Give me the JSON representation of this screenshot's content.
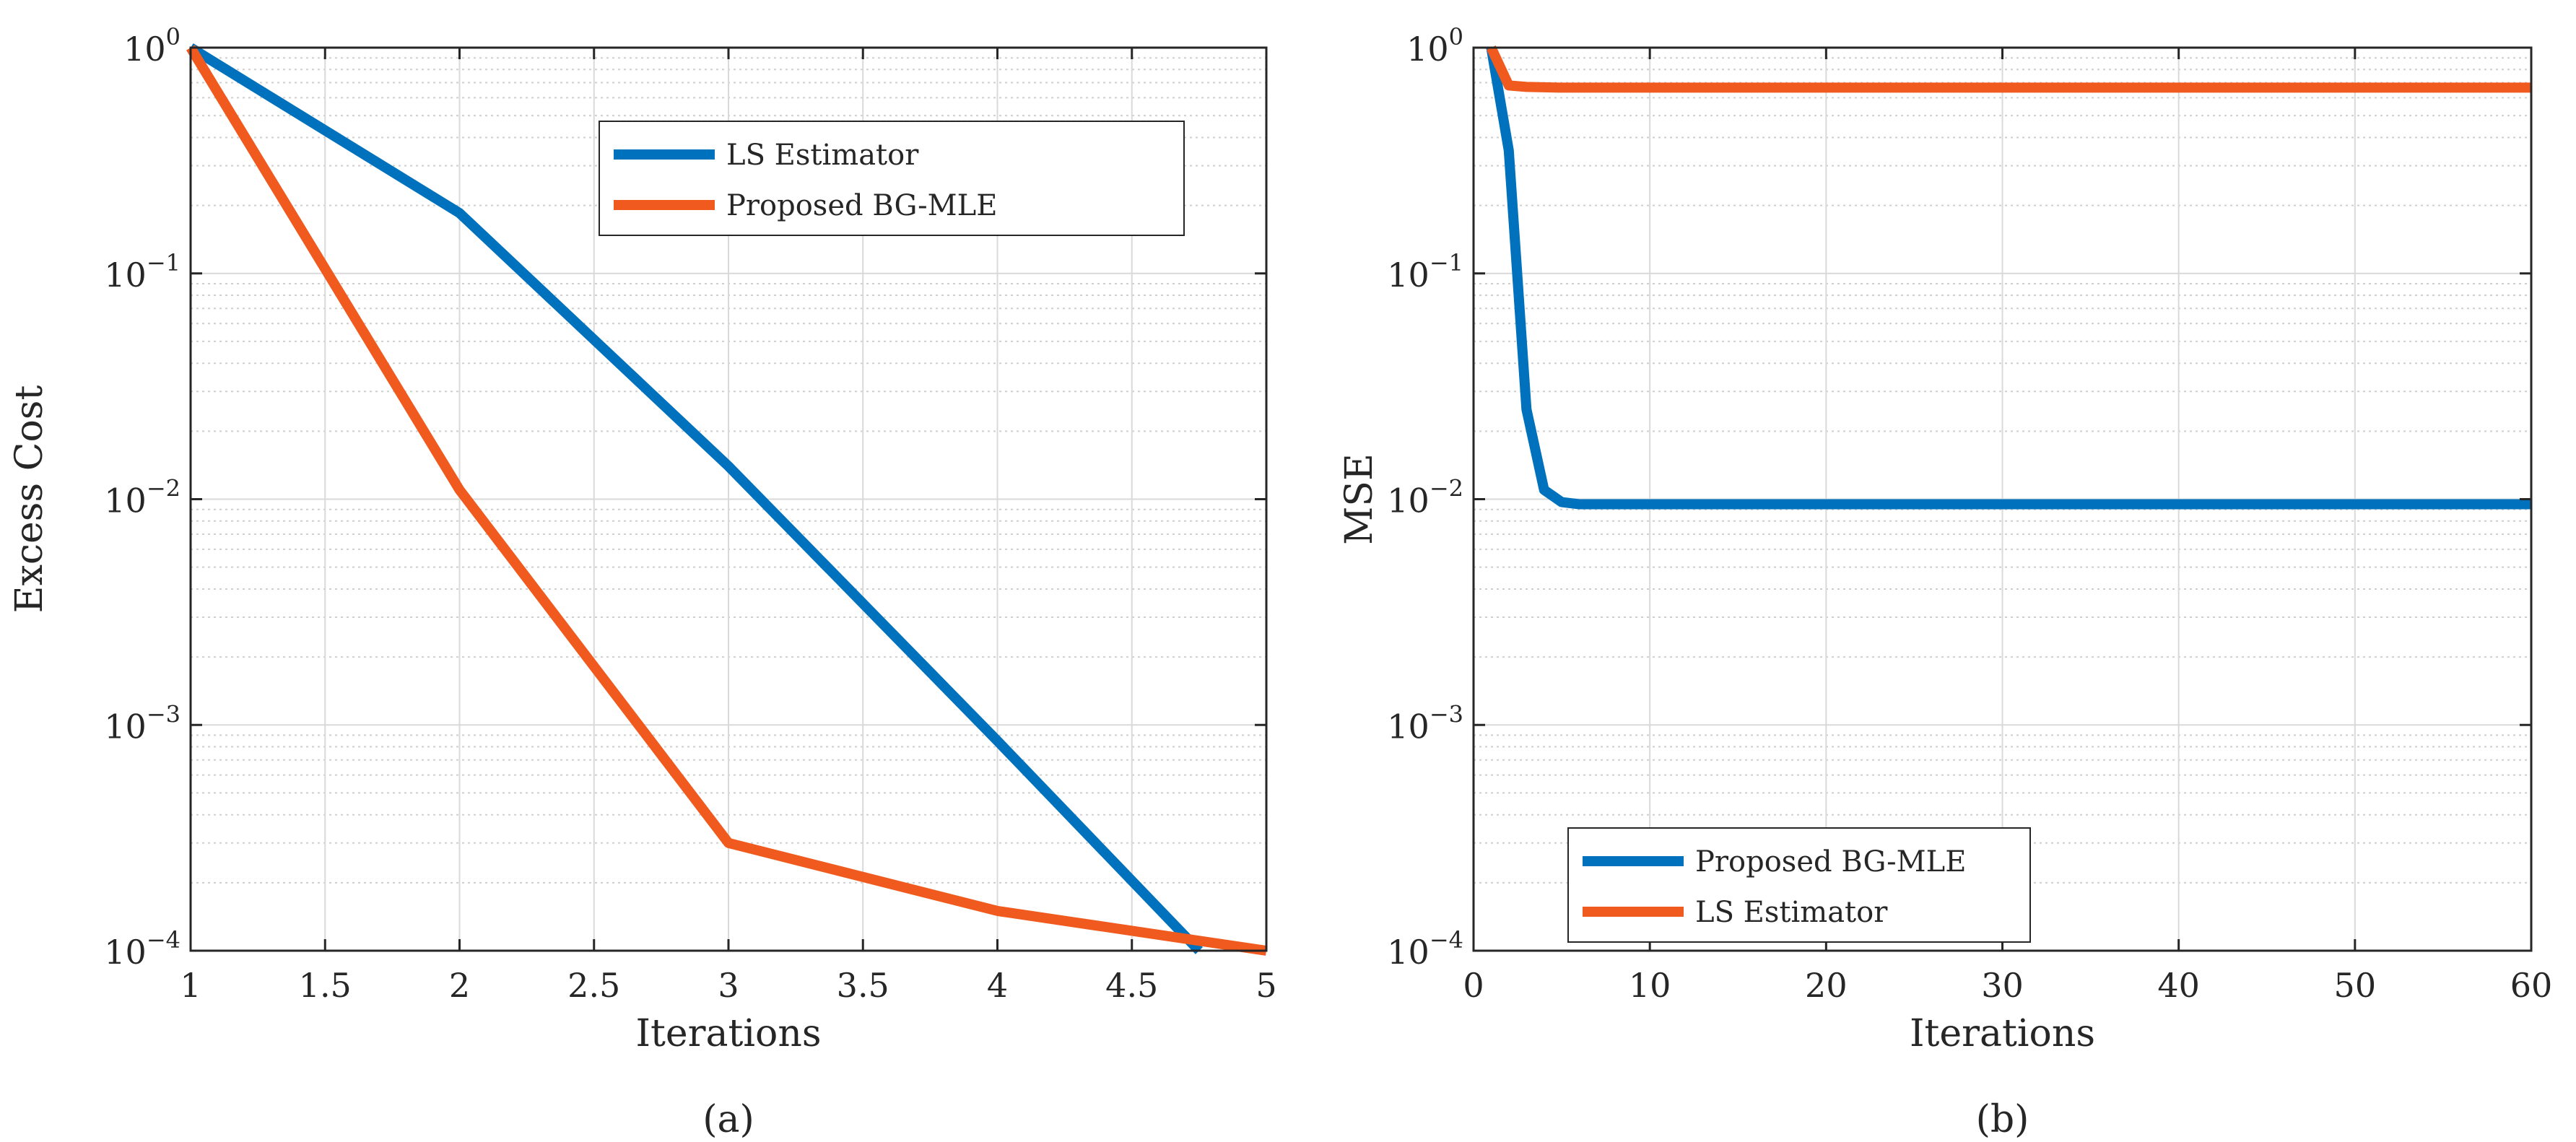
{
  "colors": {
    "blue": "#0072BD",
    "orange": "#F05A1E",
    "grid": "#d9d9d9",
    "axis": "#262626"
  },
  "chart_data": [
    {
      "type": "line",
      "panel": "(a)",
      "xlabel": "Iterations",
      "ylabel": "Excess Cost",
      "xscale": "linear",
      "yscale": "log",
      "xlim": [
        1,
        5
      ],
      "ylim": [
        0.0001,
        1
      ],
      "xticks": [
        1,
        1.5,
        2,
        2.5,
        3,
        3.5,
        4,
        4.5,
        5
      ],
      "xtick_labels": [
        "1",
        "1.5",
        "2",
        "2.5",
        "3",
        "3.5",
        "4",
        "4.5",
        "5"
      ],
      "yticks": [
        {
          "value": 1,
          "base": "10",
          "exp": "0"
        },
        {
          "value": 0.1,
          "base": "10",
          "exp": "−1"
        },
        {
          "value": 0.01,
          "base": "10",
          "exp": "−2"
        },
        {
          "value": 0.001,
          "base": "10",
          "exp": "−3"
        },
        {
          "value": 0.0001,
          "base": "10",
          "exp": "−4"
        }
      ],
      "grid": true,
      "legend_position": "top-right",
      "series": [
        {
          "name": "LS Estimator",
          "color": "#0072BD",
          "x": [
            1,
            2,
            3,
            4,
            4.75
          ],
          "y": [
            1,
            0.185,
            0.014,
            0.00085,
            0.0001
          ]
        },
        {
          "name": "Proposed BG-MLE",
          "color": "#F05A1E",
          "x": [
            1,
            2,
            3,
            4,
            5
          ],
          "y": [
            1,
            0.011,
            0.0003,
            0.00015,
            0.0001
          ]
        }
      ]
    },
    {
      "type": "line",
      "panel": "(b)",
      "xlabel": "Iterations",
      "ylabel": "MSE",
      "xscale": "linear",
      "yscale": "log",
      "xlim": [
        0,
        60
      ],
      "ylim": [
        0.0001,
        1
      ],
      "xticks": [
        0,
        10,
        20,
        30,
        40,
        50,
        60
      ],
      "xtick_labels": [
        "0",
        "10",
        "20",
        "30",
        "40",
        "50",
        "60"
      ],
      "yticks": [
        {
          "value": 1,
          "base": "10",
          "exp": "0"
        },
        {
          "value": 0.1,
          "base": "10",
          "exp": "−1"
        },
        {
          "value": 0.01,
          "base": "10",
          "exp": "−2"
        },
        {
          "value": 0.001,
          "base": "10",
          "exp": "−3"
        },
        {
          "value": 0.0001,
          "base": "10",
          "exp": "−4"
        }
      ],
      "grid": true,
      "legend_position": "bottom-left",
      "series": [
        {
          "name": "Proposed BG-MLE",
          "color": "#0072BD",
          "x": [
            1,
            2,
            3,
            4,
            5,
            6,
            8,
            10,
            20,
            30,
            40,
            50,
            60
          ],
          "y": [
            1,
            0.35,
            0.025,
            0.011,
            0.0097,
            0.0095,
            0.0095,
            0.0095,
            0.0095,
            0.0095,
            0.0095,
            0.0095,
            0.0095
          ]
        },
        {
          "name": "LS Estimator",
          "color": "#F05A1E",
          "x": [
            1,
            2,
            3,
            5,
            10,
            20,
            30,
            40,
            50,
            60
          ],
          "y": [
            1,
            0.68,
            0.67,
            0.665,
            0.665,
            0.665,
            0.665,
            0.665,
            0.665,
            0.665
          ]
        }
      ]
    }
  ]
}
